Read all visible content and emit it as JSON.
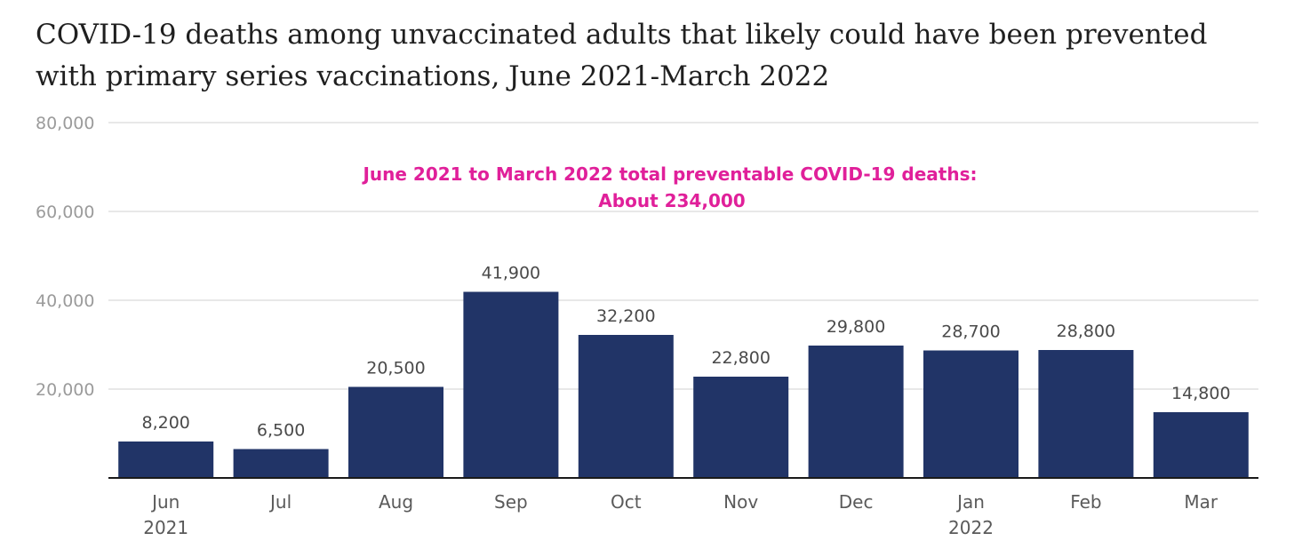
{
  "title": "COVID-19 deaths among unvaccinated adults that likely could have been prevented with primary series vaccinations, June 2021-March 2022",
  "colors": {
    "bar": "#213467",
    "annotation": "#e0209a",
    "grid": "#e0e0e0",
    "axis": "#1a1a1a"
  },
  "chart_data": {
    "type": "bar",
    "categories": [
      "Jun",
      "Jul",
      "Aug",
      "Sep",
      "Oct",
      "Nov",
      "Dec",
      "Jan",
      "Feb",
      "Mar"
    ],
    "year_labels": [
      "2021",
      "",
      "",
      "",
      "",
      "",
      "",
      "2022",
      "",
      ""
    ],
    "values": [
      8200,
      6500,
      20500,
      41900,
      32200,
      22800,
      29800,
      28700,
      28800,
      14800
    ],
    "value_labels": [
      "8,200",
      "6,500",
      "20,500",
      "41,900",
      "32,200",
      "22,800",
      "29,800",
      "28,700",
      "28,800",
      "14,800"
    ],
    "ylim": [
      0,
      80000
    ],
    "yticks": [
      20000,
      40000,
      60000,
      80000
    ],
    "ytick_labels": [
      "20,000",
      "40,000",
      "60,000",
      "80,000"
    ],
    "grid": true,
    "annotation": {
      "line1": "June 2021 to March 2022 total preventable COVID-19 deaths:",
      "line2": "About 234,000"
    }
  }
}
